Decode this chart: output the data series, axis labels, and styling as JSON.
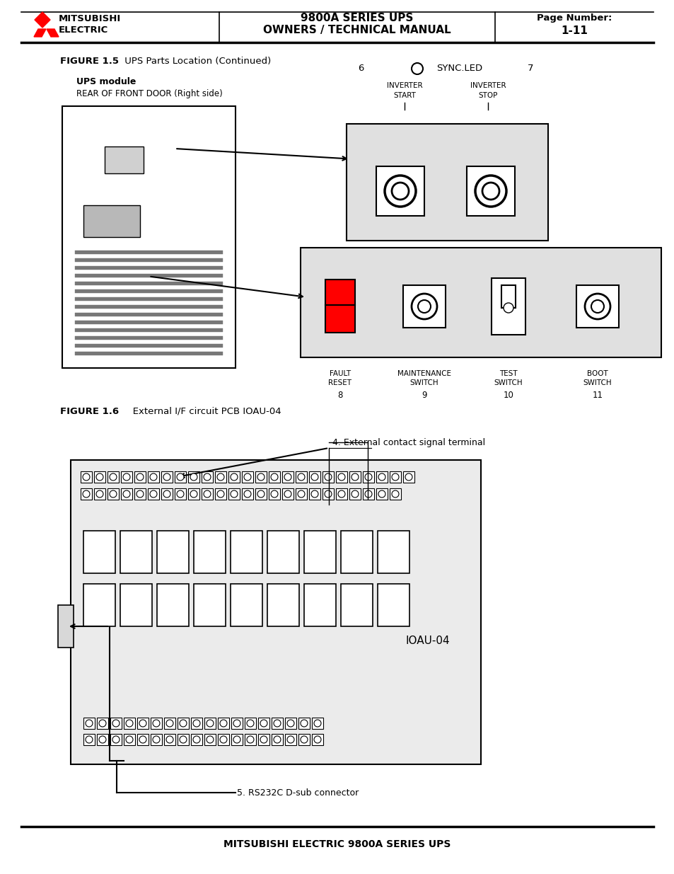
{
  "bg_color": "#ffffff",
  "header": {
    "logo_text1": "MITSUBISHI",
    "logo_text2": "ELECTRIC",
    "center_text1": "9800A SERIES UPS",
    "center_text2": "OWNERS / TECHNICAL MANUAL",
    "right_text1": "Page Number:",
    "right_text2": "1-11"
  },
  "footer_text": "MITSUBISHI ELECTRIC 9800A SERIES UPS",
  "fig1_caption_bold": "FIGURE 1.5",
  "fig1_caption_normal": " UPS Parts Location (Continued)",
  "fig1_label_bold": "UPS module",
  "fig1_label_normal": "REAR OF FRONT DOOR (Right side)",
  "fig2_caption_bold": "FIGURE 1.6",
  "fig2_caption_normal": "   External I/F circuit PCB IOAU-04",
  "ext_contact_label": "4. External contact signal terminal",
  "rs232c_label": "5. RS232C D-sub connector",
  "ioau_label": "IOAU-04",
  "panel_gray": "#e0e0e0",
  "vent_color": "#888888",
  "box_gray": "#cccccc"
}
